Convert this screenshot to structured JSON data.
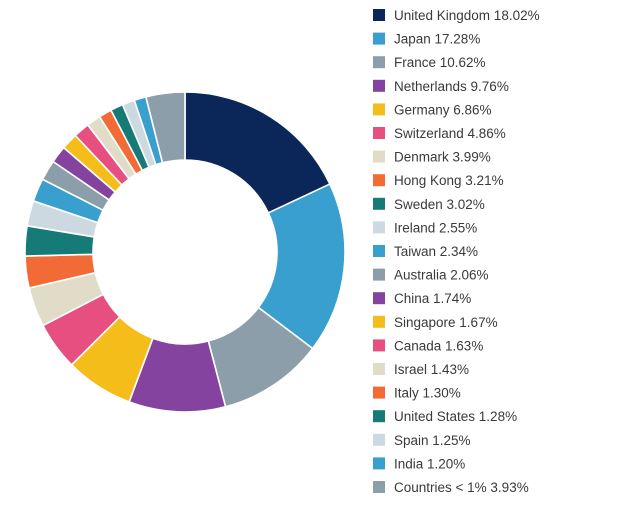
{
  "chart_data": {
    "type": "pie",
    "title": "",
    "donut": true,
    "legend_placement": "right",
    "slices": [
      {
        "label": "United Kingdom 18.02%",
        "value": 18.02,
        "color": "#0b2658"
      },
      {
        "label": "Japan 17.28%",
        "value": 17.28,
        "color": "#399fce"
      },
      {
        "label": "France 10.62%",
        "value": 10.62,
        "color": "#8c9ea9"
      },
      {
        "label": "Netherlands 9.76%",
        "value": 9.76,
        "color": "#84439e"
      },
      {
        "label": "Germany 6.86%",
        "value": 6.86,
        "color": "#f5bd1a"
      },
      {
        "label": "Switzerland 4.86%",
        "value": 4.86,
        "color": "#e64f7f"
      },
      {
        "label": "Denmark 3.99%",
        "value": 3.99,
        "color": "#e1dcc8"
      },
      {
        "label": "Hong Kong 3.21%",
        "value": 3.21,
        "color": "#f26a36"
      },
      {
        "label": "Sweden 3.02%",
        "value": 3.02,
        "color": "#167a77"
      },
      {
        "label": "Ireland 2.55%",
        "value": 2.55,
        "color": "#cdd9e0"
      },
      {
        "label": "Taiwan 2.34%",
        "value": 2.34,
        "color": "#399fce"
      },
      {
        "label": "Australia 2.06%",
        "value": 2.06,
        "color": "#8c9ea9"
      },
      {
        "label": "China 1.74%",
        "value": 1.74,
        "color": "#84439e"
      },
      {
        "label": "Singapore 1.67%",
        "value": 1.67,
        "color": "#f5bd1a"
      },
      {
        "label": "Canada 1.63%",
        "value": 1.63,
        "color": "#e64f7f"
      },
      {
        "label": "Israel 1.43%",
        "value": 1.43,
        "color": "#e1dcc8"
      },
      {
        "label": "Italy 1.30%",
        "value": 1.3,
        "color": "#f26a36"
      },
      {
        "label": "United States 1.28%",
        "value": 1.28,
        "color": "#167a77"
      },
      {
        "label": "Spain 1.25%",
        "value": 1.25,
        "color": "#cdd9e0"
      },
      {
        "label": "India 1.20%",
        "value": 1.2,
        "color": "#399fce"
      },
      {
        "label": "Countries < 1% 3.93%",
        "value": 3.93,
        "color": "#8c9ea9"
      }
    ]
  }
}
